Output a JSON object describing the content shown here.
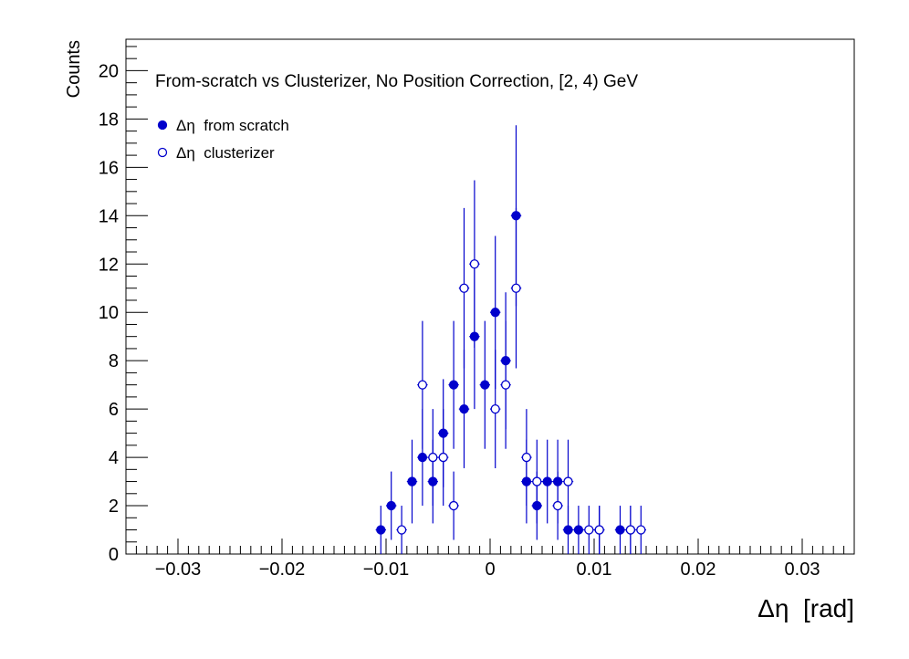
{
  "chart_data": {
    "type": "scatter",
    "title": "From-scratch vs Clusterizer, No Position Correction, [2, 4) GeV",
    "xlabel": "Δη  [rad]",
    "ylabel": "Counts",
    "xlim": [
      -0.035,
      0.035
    ],
    "ylim": [
      0,
      21.3
    ],
    "x_ticks": [
      -0.03,
      -0.02,
      -0.01,
      0,
      0.01,
      0.02,
      0.03
    ],
    "x_tick_labels": [
      "−0.03",
      "−0.02",
      "−0.01",
      "0",
      "0.01",
      "0.02",
      "0.03"
    ],
    "y_ticks": [
      0,
      2,
      4,
      6,
      8,
      10,
      12,
      14,
      16,
      18,
      20
    ],
    "y_tick_labels": [
      "0",
      "2",
      "4",
      "6",
      "8",
      "10",
      "12",
      "14",
      "16",
      "18",
      "20"
    ],
    "legend_position": "top-left",
    "colors": {
      "series": "#0000cc",
      "axis": "#000000"
    },
    "series": [
      {
        "name": "Δη  from scratch",
        "marker": "filled-circle",
        "points": [
          {
            "x": -0.0105,
            "y": 1
          },
          {
            "x": -0.0095,
            "y": 2
          },
          {
            "x": -0.0075,
            "y": 3
          },
          {
            "x": -0.0065,
            "y": 4
          },
          {
            "x": -0.0055,
            "y": 3
          },
          {
            "x": -0.0045,
            "y": 5
          },
          {
            "x": -0.0035,
            "y": 7
          },
          {
            "x": -0.0025,
            "y": 6
          },
          {
            "x": -0.0015,
            "y": 9
          },
          {
            "x": -0.0005,
            "y": 7
          },
          {
            "x": 0.0005,
            "y": 10
          },
          {
            "x": 0.0015,
            "y": 8
          },
          {
            "x": 0.0025,
            "y": 14
          },
          {
            "x": 0.0035,
            "y": 3
          },
          {
            "x": 0.0045,
            "y": 2
          },
          {
            "x": 0.0055,
            "y": 3
          },
          {
            "x": 0.0065,
            "y": 3
          },
          {
            "x": 0.0075,
            "y": 1
          },
          {
            "x": 0.0085,
            "y": 1
          },
          {
            "x": 0.0105,
            "y": 1
          },
          {
            "x": 0.0125,
            "y": 1
          },
          {
            "x": 0.0135,
            "y": 1
          }
        ]
      },
      {
        "name": "Δη  clusterizer",
        "marker": "open-circle",
        "points": [
          {
            "x": -0.0085,
            "y": 1
          },
          {
            "x": -0.0065,
            "y": 7
          },
          {
            "x": -0.0055,
            "y": 4
          },
          {
            "x": -0.0045,
            "y": 4
          },
          {
            "x": -0.0035,
            "y": 2
          },
          {
            "x": -0.0025,
            "y": 11
          },
          {
            "x": -0.0015,
            "y": 12
          },
          {
            "x": 0.0005,
            "y": 6
          },
          {
            "x": 0.0015,
            "y": 7
          },
          {
            "x": 0.0025,
            "y": 11
          },
          {
            "x": 0.0035,
            "y": 4
          },
          {
            "x": 0.0045,
            "y": 3
          },
          {
            "x": 0.0065,
            "y": 2
          },
          {
            "x": 0.0075,
            "y": 3
          },
          {
            "x": 0.0095,
            "y": 1
          },
          {
            "x": 0.0105,
            "y": 1
          },
          {
            "x": 0.0135,
            "y": 1
          },
          {
            "x": 0.0145,
            "y": 1
          }
        ]
      }
    ]
  }
}
